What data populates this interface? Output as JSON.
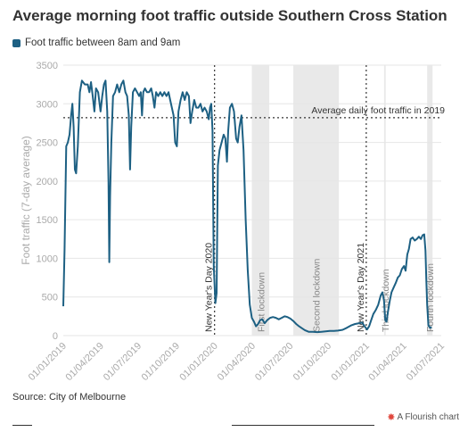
{
  "title": "Average morning foot traffic outside Southern Cross Station",
  "source": "Source: City of Melbourne",
  "credit": "A Flourish chart",
  "credit_icon": "flourish-logo-icon",
  "colors": {
    "line": "#1d6083",
    "shade": "#e9e9e9",
    "grid": "#e6e6e6",
    "axis_text": "#aaaaaa",
    "annotation": "#333333"
  },
  "chart_data": {
    "type": "line",
    "title": "Average morning foot traffic outside Southern Cross Station",
    "ylabel": "Foot traffic (7-day average)",
    "xlabel": "",
    "ylim": [
      0,
      3500
    ],
    "xlim": [
      "2019-01-01",
      "2021-07-01"
    ],
    "yticks": [
      0,
      500,
      1000,
      1500,
      2000,
      2500,
      3000,
      3500
    ],
    "xticks": [
      "01/01/2019",
      "01/04/2019",
      "01/07/2019",
      "01/10/2019",
      "01/01/2020",
      "01/04/2020",
      "01/07/2020",
      "01/10/2020",
      "01/01/2021",
      "01/04/2021",
      "01/07/2021"
    ],
    "xtick_dates": [
      "2019-01-01",
      "2019-04-01",
      "2019-07-01",
      "2019-10-01",
      "2020-01-01",
      "2020-04-01",
      "2020-07-01",
      "2020-10-01",
      "2021-01-01",
      "2021-04-01",
      "2021-07-01"
    ],
    "grid": true,
    "legend_position": "top-left",
    "series": [
      {
        "name": "Foot traffic between 8am and 9am",
        "points": [
          [
            "2019-01-01",
            380
          ],
          [
            "2019-01-04",
            1100
          ],
          [
            "2019-01-08",
            2450
          ],
          [
            "2019-01-12",
            2500
          ],
          [
            "2019-01-16",
            2600
          ],
          [
            "2019-01-20",
            2850
          ],
          [
            "2019-01-23",
            3000
          ],
          [
            "2019-01-26",
            2700
          ],
          [
            "2019-01-29",
            2150
          ],
          [
            "2019-02-01",
            2100
          ],
          [
            "2019-02-05",
            2450
          ],
          [
            "2019-02-10",
            3150
          ],
          [
            "2019-02-15",
            3300
          ],
          [
            "2019-02-22",
            3250
          ],
          [
            "2019-03-01",
            3250
          ],
          [
            "2019-03-05",
            3150
          ],
          [
            "2019-03-09",
            3280
          ],
          [
            "2019-03-13",
            3100
          ],
          [
            "2019-03-17",
            2900
          ],
          [
            "2019-03-21",
            3200
          ],
          [
            "2019-03-26",
            3150
          ],
          [
            "2019-04-01",
            2900
          ],
          [
            "2019-04-05",
            3100
          ],
          [
            "2019-04-09",
            3250
          ],
          [
            "2019-04-13",
            3300
          ],
          [
            "2019-04-17",
            2900
          ],
          [
            "2019-04-20",
            2000
          ],
          [
            "2019-04-22",
            950
          ],
          [
            "2019-04-24",
            1800
          ],
          [
            "2019-04-27",
            2500
          ],
          [
            "2019-05-01",
            3100
          ],
          [
            "2019-05-06",
            3150
          ],
          [
            "2019-05-11",
            3250
          ],
          [
            "2019-05-16",
            3150
          ],
          [
            "2019-05-21",
            3250
          ],
          [
            "2019-05-26",
            3300
          ],
          [
            "2019-05-31",
            3150
          ],
          [
            "2019-06-04",
            3100
          ],
          [
            "2019-06-08",
            2850
          ],
          [
            "2019-06-11",
            2150
          ],
          [
            "2019-06-14",
            2700
          ],
          [
            "2019-06-18",
            3150
          ],
          [
            "2019-06-23",
            3200
          ],
          [
            "2019-06-28",
            3150
          ],
          [
            "2019-07-03",
            3100
          ],
          [
            "2019-07-07",
            3150
          ],
          [
            "2019-07-10",
            2850
          ],
          [
            "2019-07-13",
            3150
          ],
          [
            "2019-07-17",
            3200
          ],
          [
            "2019-07-22",
            3150
          ],
          [
            "2019-07-27",
            3150
          ],
          [
            "2019-08-01",
            3200
          ],
          [
            "2019-08-05",
            3100
          ],
          [
            "2019-08-09",
            2950
          ],
          [
            "2019-08-13",
            3150
          ],
          [
            "2019-08-18",
            3100
          ],
          [
            "2019-08-23",
            3150
          ],
          [
            "2019-08-28",
            3100
          ],
          [
            "2019-09-02",
            3150
          ],
          [
            "2019-09-07",
            3100
          ],
          [
            "2019-09-12",
            3150
          ],
          [
            "2019-09-16",
            3050
          ],
          [
            "2019-09-20",
            2950
          ],
          [
            "2019-09-24",
            2850
          ],
          [
            "2019-09-28",
            2500
          ],
          [
            "2019-10-02",
            2450
          ],
          [
            "2019-10-06",
            2900
          ],
          [
            "2019-10-11",
            3050
          ],
          [
            "2019-10-16",
            3150
          ],
          [
            "2019-10-21",
            3050
          ],
          [
            "2019-10-26",
            3150
          ],
          [
            "2019-10-31",
            3100
          ],
          [
            "2019-11-04",
            2750
          ],
          [
            "2019-11-08",
            2900
          ],
          [
            "2019-11-13",
            3050
          ],
          [
            "2019-11-18",
            2950
          ],
          [
            "2019-11-23",
            2950
          ],
          [
            "2019-11-28",
            3000
          ],
          [
            "2019-12-03",
            2900
          ],
          [
            "2019-12-08",
            2950
          ],
          [
            "2019-12-13",
            2900
          ],
          [
            "2019-12-18",
            2800
          ],
          [
            "2019-12-21",
            2950
          ],
          [
            "2019-12-24",
            3000
          ],
          [
            "2019-12-27",
            2650
          ],
          [
            "2019-12-30",
            900
          ],
          [
            "2020-01-03",
            420
          ],
          [
            "2020-01-06",
            550
          ],
          [
            "2020-01-09",
            2200
          ],
          [
            "2020-01-13",
            2400
          ],
          [
            "2020-01-18",
            2500
          ],
          [
            "2020-01-23",
            2600
          ],
          [
            "2020-01-27",
            2550
          ],
          [
            "2020-01-31",
            2250
          ],
          [
            "2020-02-03",
            2650
          ],
          [
            "2020-02-07",
            2950
          ],
          [
            "2020-02-12",
            3000
          ],
          [
            "2020-02-17",
            2900
          ],
          [
            "2020-02-22",
            2550
          ],
          [
            "2020-02-26",
            2500
          ],
          [
            "2020-03-01",
            2700
          ],
          [
            "2020-03-06",
            2850
          ],
          [
            "2020-03-11",
            2400
          ],
          [
            "2020-03-16",
            1500
          ],
          [
            "2020-03-21",
            850
          ],
          [
            "2020-03-26",
            400
          ],
          [
            "2020-03-31",
            230
          ],
          [
            "2020-04-05",
            180
          ],
          [
            "2020-04-10",
            120
          ],
          [
            "2020-04-15",
            150
          ],
          [
            "2020-04-20",
            200
          ],
          [
            "2020-04-25",
            210
          ],
          [
            "2020-05-01",
            160
          ],
          [
            "2020-05-07",
            200
          ],
          [
            "2020-05-14",
            230
          ],
          [
            "2020-05-21",
            240
          ],
          [
            "2020-05-28",
            230
          ],
          [
            "2020-06-04",
            210
          ],
          [
            "2020-06-11",
            230
          ],
          [
            "2020-06-18",
            250
          ],
          [
            "2020-06-25",
            240
          ],
          [
            "2020-07-02",
            220
          ],
          [
            "2020-07-09",
            190
          ],
          [
            "2020-07-16",
            150
          ],
          [
            "2020-07-23",
            120
          ],
          [
            "2020-07-30",
            95
          ],
          [
            "2020-08-06",
            70
          ],
          [
            "2020-08-15",
            50
          ],
          [
            "2020-08-25",
            50
          ],
          [
            "2020-09-05",
            45
          ],
          [
            "2020-09-15",
            50
          ],
          [
            "2020-09-25",
            55
          ],
          [
            "2020-10-05",
            60
          ],
          [
            "2020-10-15",
            60
          ],
          [
            "2020-10-25",
            65
          ],
          [
            "2020-11-05",
            75
          ],
          [
            "2020-11-15",
            100
          ],
          [
            "2020-11-25",
            130
          ],
          [
            "2020-12-05",
            150
          ],
          [
            "2020-12-15",
            160
          ],
          [
            "2020-12-22",
            170
          ],
          [
            "2020-12-28",
            120
          ],
          [
            "2021-01-03",
            80
          ],
          [
            "2021-01-08",
            120
          ],
          [
            "2021-01-13",
            200
          ],
          [
            "2021-01-18",
            280
          ],
          [
            "2021-01-24",
            330
          ],
          [
            "2021-01-30",
            400
          ],
          [
            "2021-02-05",
            520
          ],
          [
            "2021-02-09",
            560
          ],
          [
            "2021-02-13",
            450
          ],
          [
            "2021-02-16",
            200
          ],
          [
            "2021-02-19",
            180
          ],
          [
            "2021-02-23",
            330
          ],
          [
            "2021-02-27",
            460
          ],
          [
            "2021-03-03",
            560
          ],
          [
            "2021-03-08",
            620
          ],
          [
            "2021-03-13",
            680
          ],
          [
            "2021-03-18",
            750
          ],
          [
            "2021-03-23",
            780
          ],
          [
            "2021-03-28",
            860
          ],
          [
            "2021-04-02",
            900
          ],
          [
            "2021-04-06",
            840
          ],
          [
            "2021-04-10",
            1050
          ],
          [
            "2021-04-14",
            1120
          ],
          [
            "2021-04-18",
            1250
          ],
          [
            "2021-04-23",
            1270
          ],
          [
            "2021-04-28",
            1230
          ],
          [
            "2021-05-03",
            1250
          ],
          [
            "2021-05-08",
            1280
          ],
          [
            "2021-05-13",
            1250
          ],
          [
            "2021-05-17",
            1300
          ],
          [
            "2021-05-21",
            1310
          ],
          [
            "2021-05-24",
            1100
          ],
          [
            "2021-05-26",
            700
          ],
          [
            "2021-05-28",
            400
          ],
          [
            "2021-05-31",
            130
          ],
          [
            "2021-06-04",
            100
          ],
          [
            "2021-06-08",
            110
          ]
        ]
      }
    ],
    "reference_line": {
      "label": "Average daily foot traffic in 2019",
      "y": 2820
    },
    "annotations": [
      {
        "label": "New Year's Day 2020",
        "date": "2020-01-01"
      },
      {
        "label": "New Year's Day 2021",
        "date": "2021-01-01"
      }
    ],
    "lockdowns": [
      {
        "label": "First lockdown",
        "start": "2020-03-31",
        "end": "2020-05-12"
      },
      {
        "label": "Second lockdown",
        "start": "2020-07-09",
        "end": "2020-10-27"
      },
      {
        "label": "Third lockdown",
        "start": "2021-02-13",
        "end": "2021-02-17"
      },
      {
        "label": "Fourth lockdown",
        "start": "2021-05-28",
        "end": "2021-06-10"
      }
    ]
  }
}
